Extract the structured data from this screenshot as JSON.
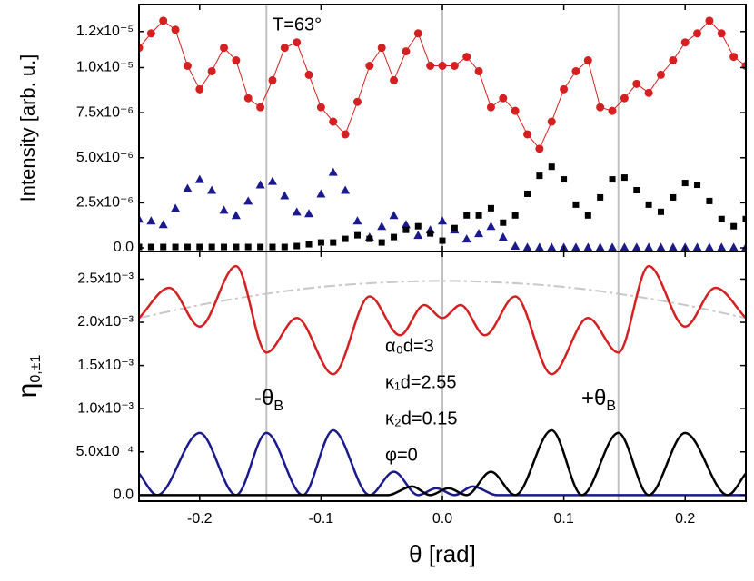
{
  "chart_data": [
    {
      "type": "scatter",
      "y_label": "Intensity [arb. u.]",
      "annotations": [
        "T=63°"
      ],
      "xlim": [
        -0.25,
        0.25
      ],
      "ylim": [
        -2e-07,
        1.35e-05
      ],
      "yticks": [
        {
          "value": 0,
          "label": "0.0"
        },
        {
          "value": 2.5e-06,
          "label": "2.5x10⁻⁶"
        },
        {
          "value": 5e-06,
          "label": "5.0x10⁻⁶"
        },
        {
          "value": 7.5e-06,
          "label": "7.5x10⁻⁶"
        },
        {
          "value": 1e-05,
          "label": "1.0x10⁻⁵"
        },
        {
          "value": 1.2e-05,
          "label": "1.2x10⁻⁵"
        }
      ],
      "vlines": [
        -0.145,
        0,
        0.145
      ],
      "x": [
        -0.25,
        -0.24,
        -0.23,
        -0.22,
        -0.21,
        -0.2,
        -0.19,
        -0.18,
        -0.17,
        -0.16,
        -0.15,
        -0.14,
        -0.13,
        -0.12,
        -0.11,
        -0.1,
        -0.09,
        -0.08,
        -0.07,
        -0.06,
        -0.05,
        -0.04,
        -0.03,
        -0.02,
        -0.01,
        0,
        0.01,
        0.02,
        0.03,
        0.04,
        0.05,
        0.06,
        0.07,
        0.08,
        0.09,
        0.1,
        0.11,
        0.12,
        0.13,
        0.14,
        0.15,
        0.16,
        0.17,
        0.18,
        0.19,
        0.2,
        0.21,
        0.22,
        0.23,
        0.24,
        0.25
      ],
      "series": [
        {
          "color": "#d42020",
          "marker": "circle",
          "line": true,
          "values": [
            1.11e-05,
            1.19e-05,
            1.26e-05,
            1.21e-05,
            1.01e-05,
            8.8e-06,
            9.8e-06,
            1.11e-05,
            1.04e-05,
            8.3e-06,
            7.8e-06,
            9.3e-06,
            1.11e-05,
            1.14e-05,
            9.6e-06,
            7.8e-06,
            7e-06,
            6.3e-06,
            8.1e-06,
            1.01e-05,
            1.11e-05,
            9.3e-06,
            1.09e-05,
            1.19e-05,
            1.01e-05,
            1.01e-05,
            1.01e-05,
            1.06e-05,
            9.8e-06,
            7.8e-06,
            8.3e-06,
            7.6e-06,
            6.3e-06,
            5.5e-06,
            7e-06,
            8.8e-06,
            9.8e-06,
            1.04e-05,
            7.8e-06,
            7.6e-06,
            8.3e-06,
            9.1e-06,
            8.6e-06,
            9.6e-06,
            1.04e-05,
            1.14e-05,
            1.19e-05,
            1.26e-05,
            1.19e-05,
            1.06e-05,
            1.01e-05
          ]
        },
        {
          "color": "#1a1a8c",
          "marker": "triangle",
          "line": false,
          "values": [
            1.6e-06,
            1.5e-06,
            1.3e-06,
            2.2e-06,
            3.3e-06,
            3.8e-06,
            3.2e-06,
            2.1e-06,
            1.8e-06,
            2.6e-06,
            3.5e-06,
            3.7e-06,
            2.9e-06,
            2e-06,
            1.9e-06,
            3e-06,
            4.2e-06,
            3.2e-06,
            1.5e-06,
            6e-07,
            1.2e-06,
            1.8e-06,
            1.3e-06,
            7e-07,
            1e-06,
            1.5e-06,
            1e-06,
            5e-07,
            8e-07,
            1.2e-06,
            6e-07,
            1e-07,
            3e-08,
            3e-08,
            3e-08,
            3e-08,
            3e-08,
            3e-08,
            3e-08,
            3e-08,
            3e-08,
            3e-08,
            3e-08,
            3e-08,
            3e-08,
            3e-08,
            3e-08,
            3e-08,
            3e-08,
            3e-08,
            3e-08
          ]
        },
        {
          "color": "#000000",
          "marker": "square",
          "line": false,
          "values": [
            5e-08,
            5e-08,
            5e-08,
            5e-08,
            5e-08,
            5e-08,
            5e-08,
            5e-08,
            5e-08,
            5e-08,
            5e-08,
            5e-08,
            5e-08,
            1e-07,
            2e-07,
            3e-07,
            3e-07,
            5e-07,
            7e-07,
            5e-07,
            3e-07,
            6e-07,
            1e-06,
            1.2e-06,
            8e-07,
            4e-07,
            1.1e-06,
            1.8e-06,
            1.8e-06,
            2.2e-06,
            1.4e-06,
            1.8e-06,
            3e-06,
            4e-06,
            4.5e-06,
            3.8e-06,
            2.4e-06,
            1.8e-06,
            2.8e-06,
            3.8e-06,
            3.9e-06,
            3.2e-06,
            2.4e-06,
            2e-06,
            2.8e-06,
            3.6e-06,
            3.5e-06,
            2.6e-06,
            1.6e-06,
            1.2e-06,
            1.6e-06
          ]
        }
      ]
    },
    {
      "type": "line",
      "y_label": "η",
      "y_label_sub": "0,±1",
      "x_label": "θ [rad]",
      "annotations": [
        "α₀d=3",
        "κ₁d=2.55",
        "κ₂d=0.15",
        "φ=0"
      ],
      "theta_labels": [
        {
          "text": "-θ",
          "sub": "B"
        },
        {
          "text": "+θ",
          "sub": "B"
        }
      ],
      "xlim": [
        -0.25,
        0.25
      ],
      "xticks": [
        -0.2,
        -0.1,
        {
          "value": 0,
          "label": "0.0"
        },
        0.1,
        0.2
      ],
      "ylim": [
        -7e-05,
        0.00282
      ],
      "yticks": [
        {
          "value": 0,
          "label": "0.0"
        },
        {
          "value": 0.0005,
          "label": "5.0x10⁻⁴"
        },
        {
          "value": 0.001,
          "label": "1.0x10⁻³"
        },
        {
          "value": 0.0015,
          "label": "1.5x10⁻³"
        },
        {
          "value": 0.002,
          "label": "2.0x10⁻³"
        },
        {
          "value": 0.0025,
          "label": "2.5x10⁻³"
        }
      ],
      "vlines": [
        -0.145,
        0,
        0.145
      ],
      "series": [
        {
          "color": "#c8c8c8",
          "dash": "dashdot",
          "x": [
            -0.25,
            -0.2,
            -0.15,
            -0.1,
            -0.05,
            0,
            0.05,
            0.1,
            0.15,
            0.2,
            0.25
          ],
          "values": [
            0.00205,
            0.0022,
            0.00232,
            0.00241,
            0.00246,
            0.00248,
            0.00246,
            0.00241,
            0.00232,
            0.0022,
            0.00205
          ]
        },
        {
          "color": "#d42020",
          "dash": "solid",
          "x": [
            -0.25,
            -0.225,
            -0.2,
            -0.17,
            -0.145,
            -0.12,
            -0.09,
            -0.06,
            -0.035,
            -0.015,
            0,
            0.015,
            0.035,
            0.06,
            0.09,
            0.12,
            0.145,
            0.17,
            0.2,
            0.225,
            0.25
          ],
          "values": [
            0.00205,
            0.0024,
            0.00195,
            0.00265,
            0.00165,
            0.00205,
            0.0014,
            0.0023,
            0.00185,
            0.0022,
            0.00205,
            0.0022,
            0.00185,
            0.0023,
            0.0014,
            0.00205,
            0.00165,
            0.00265,
            0.00195,
            0.0024,
            0.00205
          ]
        },
        {
          "color": "#1a1a8c",
          "dash": "solid",
          "x": [
            -0.25,
            -0.235,
            -0.2,
            -0.17,
            -0.145,
            -0.115,
            -0.09,
            -0.06,
            -0.04,
            -0.02,
            -0.005,
            0.01,
            0.025,
            0.045,
            0.25
          ],
          "values": [
            0.00025,
            0,
            0.00072,
            0,
            0.00072,
            0,
            0.00075,
            0,
            0.00027,
            0,
            8e-05,
            0,
            0.0001,
            0,
            0
          ]
        },
        {
          "color": "#000000",
          "dash": "solid",
          "x": [
            -0.25,
            -0.045,
            -0.025,
            -0.01,
            0.005,
            0.02,
            0.04,
            0.06,
            0.09,
            0.115,
            0.145,
            0.17,
            0.2,
            0.235,
            0.25
          ],
          "values": [
            0,
            0,
            0.0001,
            0,
            8e-05,
            0,
            0.00027,
            0,
            0.00075,
            0,
            0.00072,
            0,
            0.00072,
            0,
            0.00025
          ]
        }
      ]
    }
  ]
}
